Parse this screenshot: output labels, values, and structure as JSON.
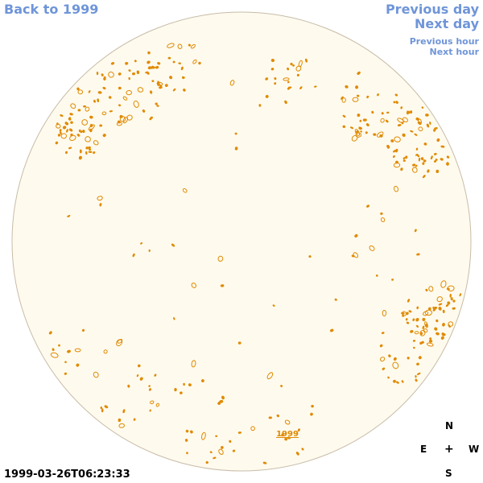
{
  "nav": {
    "back": "Back to 1999",
    "prev_day": "Previous day",
    "next_day": "Next day",
    "prev_hour": "Previous hour",
    "next_hour": "Next hour"
  },
  "timestamp": "1999-03-26T06:23:33",
  "compass": {
    "north": "N",
    "east": "E",
    "center": "+",
    "west": "W",
    "south": "S"
  },
  "disk": {
    "year_label": "1999",
    "fill_color": "#fefaee",
    "rim_color": "#c8bca8",
    "contour_color": "#e08a00"
  }
}
